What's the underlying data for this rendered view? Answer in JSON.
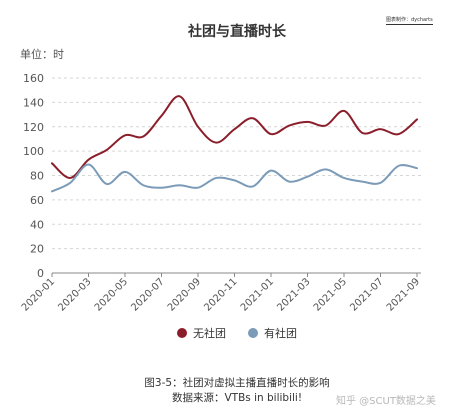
{
  "credit": "图表制作：dycharts",
  "caption": {
    "line1": "图3-5：社团对虚拟主播直播时长的影响",
    "line2": "数据来源：VTBs in bilibili!"
  },
  "watermark": "知乎 @SCUT数据之美",
  "chart_data": {
    "type": "line",
    "title": "社团与直播时长",
    "ylabel": "单位：时",
    "xlabel": "",
    "ylim": [
      0,
      160
    ],
    "yticks": [
      0,
      20,
      40,
      60,
      80,
      100,
      120,
      140,
      160
    ],
    "grid": true,
    "legend_position": "bottom",
    "x": [
      "2020-01",
      "2020-02",
      "2020-03",
      "2020-04",
      "2020-05",
      "2020-06",
      "2020-07",
      "2020-08",
      "2020-09",
      "2020-10",
      "2020-11",
      "2020-12",
      "2021-01",
      "2021-02",
      "2021-03",
      "2021-04",
      "2021-05",
      "2021-06",
      "2021-07",
      "2021-08",
      "2021-09"
    ],
    "xticks": [
      "2020-01",
      "2020-03",
      "2020-05",
      "2020-07",
      "2020-09",
      "2020-11",
      "2021-01",
      "2021-03",
      "2021-05",
      "2021-07",
      "2021-09"
    ],
    "series": [
      {
        "name": "无社团",
        "color": "#8b1e2b",
        "values": [
          90,
          78,
          93,
          101,
          113,
          112,
          129,
          145,
          120,
          107,
          118,
          127,
          114,
          121,
          124,
          121,
          133,
          115,
          118,
          114,
          126
        ]
      },
      {
        "name": "有社团",
        "color": "#7b9bb8",
        "values": [
          67,
          74,
          89,
          73,
          83,
          72,
          70,
          72,
          70,
          78,
          76,
          71,
          84,
          75,
          79,
          85,
          78,
          75,
          74,
          88,
          86
        ]
      }
    ]
  }
}
